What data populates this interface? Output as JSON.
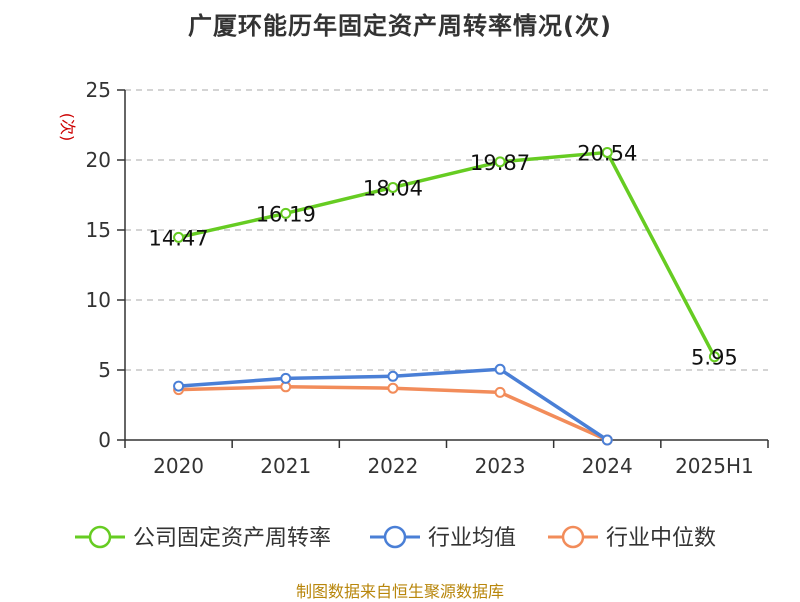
{
  "title": "广厦环能历年固定资产周转率情况(次)",
  "source": "制图数据来自恒生聚源数据库",
  "colors": {
    "company": "#66cc22",
    "avg": "#4a7fd6",
    "median": "#f28c5a",
    "grid": "#bbbbbb",
    "axis": "#333333"
  },
  "chart_data": {
    "type": "line",
    "title": "广厦环能历年固定资产周转率情况(次)",
    "ylabel": "(次)",
    "ylim": [
      0,
      25
    ],
    "yticks": [
      0,
      5,
      10,
      15,
      20,
      25
    ],
    "categories": [
      "2020",
      "2021",
      "2022",
      "2023",
      "2024",
      "2025H1"
    ],
    "grid": true,
    "legend": "bottom",
    "series": [
      {
        "name": "公司固定资产周转率",
        "values": [
          14.47,
          16.19,
          18.04,
          19.87,
          20.54,
          5.95
        ],
        "labels": [
          "14.47",
          "16.19",
          "18.04",
          "19.87",
          "20.54",
          "5.95"
        ],
        "color": "#66cc22"
      },
      {
        "name": "行业均值",
        "values": [
          3.85,
          4.4,
          4.55,
          5.05,
          0,
          null
        ],
        "color": "#4a7fd6"
      },
      {
        "name": "行业中位数",
        "values": [
          3.6,
          3.8,
          3.7,
          3.4,
          0,
          null
        ],
        "color": "#f28c5a"
      }
    ]
  }
}
